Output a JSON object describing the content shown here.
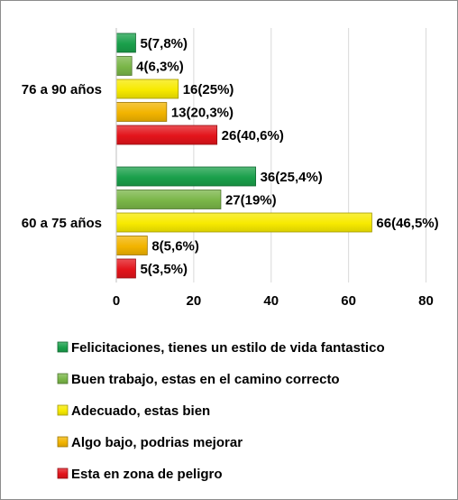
{
  "chart_data": {
    "type": "bar",
    "orientation": "horizontal",
    "categories": [
      "76 a 90 años",
      "60 a 75 años"
    ],
    "xlim": [
      0,
      85
    ],
    "x_ticks": [
      "0",
      "20",
      "40",
      "60",
      "80"
    ],
    "x_tick_values": [
      0,
      20,
      40,
      60,
      80
    ],
    "grid": true,
    "legend_position": "bottom",
    "series": [
      {
        "name": "Felicitaciones, tienes un estilo de vida fantastico",
        "color": "#1aa04b",
        "values": [
          5,
          36
        ],
        "labels": [
          "5(7,8%)",
          "36(25,4%)"
        ]
      },
      {
        "name": "Buen trabajo, estas en el camino correcto",
        "color": "#7ab648",
        "values": [
          4,
          27
        ],
        "labels": [
          "4(6,3%)",
          "27(19%)"
        ]
      },
      {
        "name": "Adecuado, estas bien",
        "color": "#f7ea00",
        "values": [
          16,
          66
        ],
        "labels": [
          "16(25%)",
          "66(46,5%)"
        ]
      },
      {
        "name": "Algo bajo, podrias mejorar",
        "color": "#f2b400",
        "values": [
          13,
          8
        ],
        "labels": [
          "13(20,3%)",
          "8(5,6%)"
        ]
      },
      {
        "name": "Esta en zona de peligro",
        "color": "#e3141b",
        "values": [
          26,
          5
        ],
        "labels": [
          "26(40,6%)",
          "5(3,5%)"
        ]
      }
    ]
  }
}
